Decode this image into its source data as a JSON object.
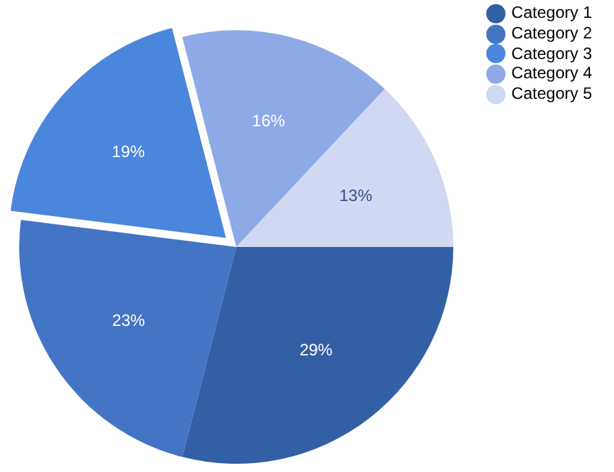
{
  "chart_data": {
    "type": "pie",
    "categories": [
      "Category 1",
      "Category 2",
      "Category 3",
      "Category 4",
      "Category 5"
    ],
    "values": [
      29,
      23,
      19,
      16,
      13
    ],
    "colors": [
      "#335fa5",
      "#4474c4",
      "#4a86dc",
      "#8eaae6",
      "#d0d8f2"
    ],
    "value_labels": [
      "29%",
      "23%",
      "19%",
      "16%",
      "13%"
    ],
    "legend": "top right"
  }
}
